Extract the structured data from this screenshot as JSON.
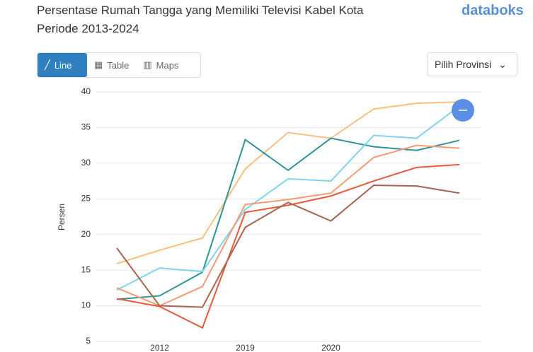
{
  "ui": {
    "logo": "databoks",
    "tabs": [
      "Line",
      "Table",
      "Maps"
    ],
    "dropdown": "Pilih Provinsi"
  },
  "chart_data": {
    "type": "line",
    "title": "Persentase Rumah Tangga yang Memiliki Televisi Kabel Kota Periode 2013-2024",
    "y_label": "Persen",
    "categories": [
      null,
      "2012",
      null,
      "2019",
      null,
      "2020",
      null,
      null,
      null
    ],
    "ylim": [
      5,
      40
    ],
    "yticks": [
      5,
      10,
      15,
      20,
      25,
      30,
      35,
      40
    ],
    "grid": true,
    "series": [
      {
        "color": "#f9c07b",
        "values": [
          15.9,
          17.8,
          19.5,
          29.2,
          34.3,
          33.5,
          37.6,
          38.4,
          38.6
        ]
      },
      {
        "color": "#2a9596",
        "values": [
          10.9,
          11.4,
          14.7,
          33.3,
          29.0,
          33.5,
          32.3,
          31.8,
          33.2
        ]
      },
      {
        "color": "#7fd3ef",
        "values": [
          12.2,
          15.3,
          14.8,
          23.5,
          27.8,
          27.5,
          33.9,
          33.5,
          38.0
        ]
      },
      {
        "color": "#f59a72",
        "values": [
          12.5,
          10.0,
          12.7,
          24.2,
          24.9,
          25.8,
          30.8,
          32.5,
          32.1
        ]
      },
      {
        "color": "#e8593a",
        "values": [
          11.0,
          9.9,
          6.9,
          23.1,
          24.1,
          25.4,
          27.5,
          29.4,
          29.8
        ]
      },
      {
        "color": "#a8634f",
        "values": [
          18.1,
          10.0,
          9.8,
          21.0,
          24.5,
          21.9,
          26.9,
          26.8,
          25.8
        ]
      }
    ]
  }
}
